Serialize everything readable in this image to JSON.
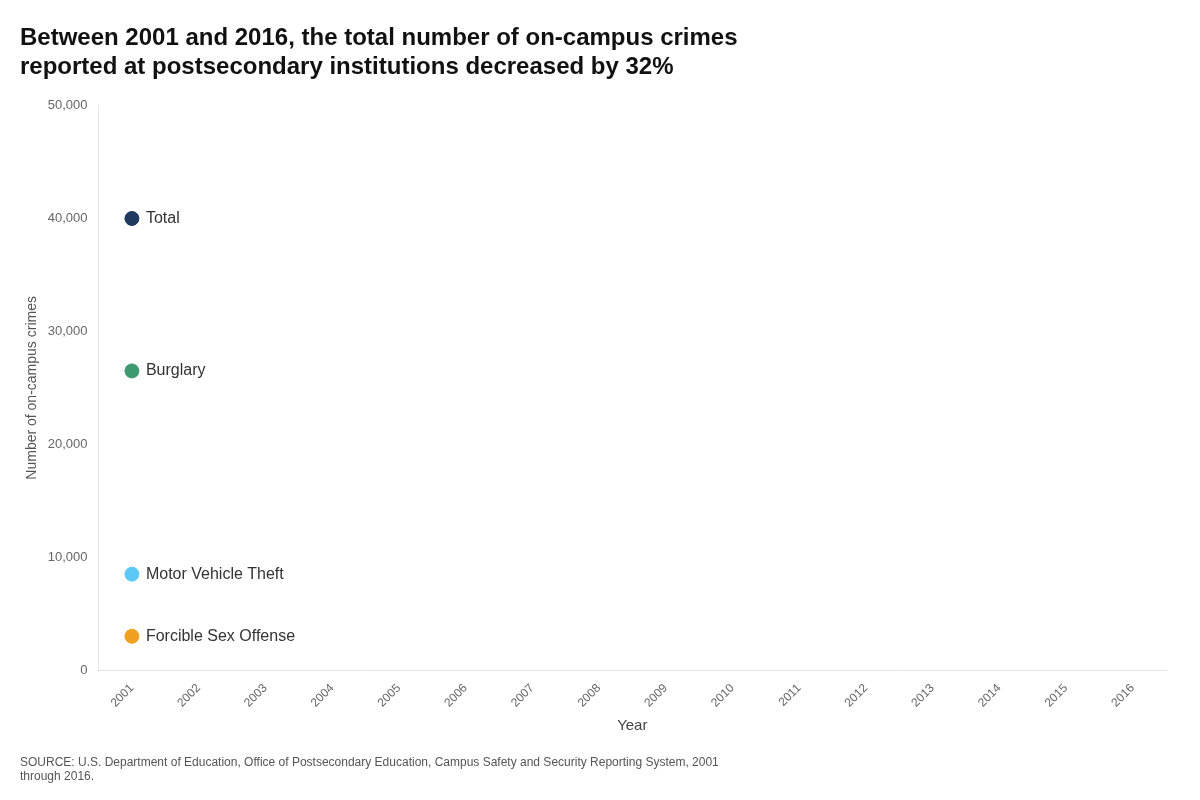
{
  "chart_data": {
    "type": "scatter",
    "title": [
      "Between 2001 and 2016, the total number of on-campus crimes",
      "reported at postsecondary institutions decreased by 32%"
    ],
    "ylabel": "Number of on-campus crimes",
    "xlabel": "Year",
    "source": "SOURCE: U.S. Department of Education, Office of Postsecondary Education, Campus Safety and Security Reporting System, 2001\nthrough 2016.",
    "series": [
      {
        "name": "Total",
        "color": "#1e3a5f",
        "x": [
          2001
        ],
        "values": [
          40000
        ]
      },
      {
        "name": "Burglary",
        "color": "#3d9970",
        "x": [
          2001
        ],
        "values": [
          26500
        ]
      },
      {
        "name": "Motor Vehicle Theft",
        "color": "#5bc8f5",
        "x": [
          2001
        ],
        "values": [
          8500
        ]
      },
      {
        "name": "Forcible Sex Offense",
        "color": "#f0a020",
        "x": [
          2001
        ],
        "values": [
          3000
        ]
      }
    ],
    "xlim": [
      2000.5,
      2016.5
    ],
    "xticks": [
      2001,
      2002,
      2003,
      2004,
      2005,
      2006,
      2007,
      2008,
      2009,
      2010,
      2011,
      2012,
      2013,
      2014,
      2015,
      2016
    ],
    "ylim": [
      0,
      50000
    ],
    "yticks": [
      0,
      {
        "value": 10000,
        "label": "10,000"
      },
      {
        "value": 20000,
        "label": "20,000"
      },
      {
        "value": 30000,
        "label": "30,000"
      },
      {
        "value": 40000,
        "label": "40,000"
      },
      {
        "value": 50000,
        "label": "50,000"
      }
    ],
    "grid": false
  }
}
